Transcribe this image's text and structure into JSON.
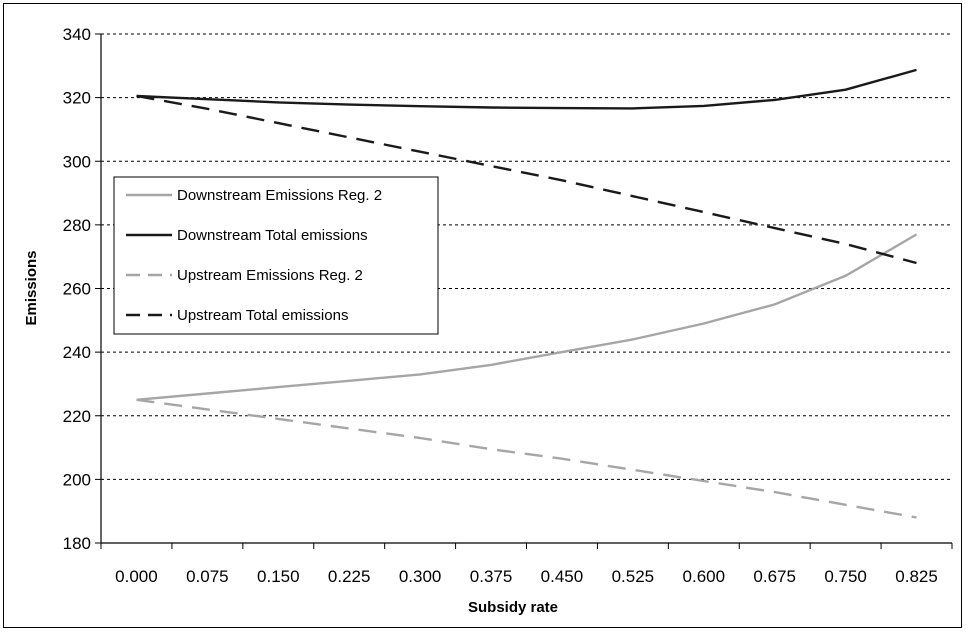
{
  "chart_data": {
    "type": "line",
    "title": "",
    "xlabel": "Subsidy rate",
    "ylabel": "Emissions",
    "categories": [
      "0.000",
      "0.075",
      "0.150",
      "0.225",
      "0.300",
      "0.375",
      "0.450",
      "0.525",
      "0.600",
      "0.675",
      "0.750",
      "0.825"
    ],
    "ylim": [
      180,
      340
    ],
    "yticks": [
      "180",
      "200",
      "220",
      "240",
      "260",
      "280",
      "300",
      "320",
      "340"
    ],
    "grid": "horizontal dashed",
    "legend_position": "left, inside plot",
    "series": [
      {
        "name": "Downstream Emissions Reg. 2",
        "color": "#a6a6a6",
        "dash": "solid",
        "points": [
          [
            0.0,
            225
          ],
          [
            0.075,
            227
          ],
          [
            0.15,
            229
          ],
          [
            0.225,
            231
          ],
          [
            0.3,
            233
          ],
          [
            0.375,
            236
          ],
          [
            0.45,
            240
          ],
          [
            0.525,
            244
          ],
          [
            0.6,
            249
          ],
          [
            0.675,
            255
          ],
          [
            0.75,
            264
          ],
          [
            0.825,
            277
          ]
        ]
      },
      {
        "name": "Downstream Total emissions",
        "color": "#1a1a1a",
        "dash": "solid",
        "points": [
          [
            0.0,
            320.5
          ],
          [
            0.075,
            319.5
          ],
          [
            0.15,
            318.5
          ],
          [
            0.225,
            317.8
          ],
          [
            0.3,
            317.3
          ],
          [
            0.375,
            316.9
          ],
          [
            0.45,
            316.7
          ],
          [
            0.525,
            316.6
          ],
          [
            0.6,
            317.4
          ],
          [
            0.675,
            319.3
          ],
          [
            0.75,
            322.5
          ],
          [
            0.825,
            328.7
          ]
        ]
      },
      {
        "name": "Upstream Emissions Reg. 2",
        "color": "#a6a6a6",
        "dash": "dashed",
        "points": [
          [
            0.0,
            225
          ],
          [
            0.075,
            222
          ],
          [
            0.15,
            219
          ],
          [
            0.225,
            216
          ],
          [
            0.3,
            213
          ],
          [
            0.375,
            209.5
          ],
          [
            0.45,
            206.5
          ],
          [
            0.525,
            203
          ],
          [
            0.6,
            199.5
          ],
          [
            0.675,
            196
          ],
          [
            0.75,
            192
          ],
          [
            0.825,
            188
          ]
        ]
      },
      {
        "name": "Upstream Total emissions",
        "color": "#1a1a1a",
        "dash": "dashed",
        "points": [
          [
            0.0,
            320.5
          ],
          [
            0.075,
            316.5
          ],
          [
            0.15,
            312
          ],
          [
            0.225,
            307.5
          ],
          [
            0.3,
            303
          ],
          [
            0.375,
            298.5
          ],
          [
            0.45,
            294
          ],
          [
            0.525,
            289
          ],
          [
            0.6,
            284
          ],
          [
            0.675,
            279
          ],
          [
            0.75,
            274
          ],
          [
            0.825,
            268
          ]
        ]
      }
    ]
  }
}
